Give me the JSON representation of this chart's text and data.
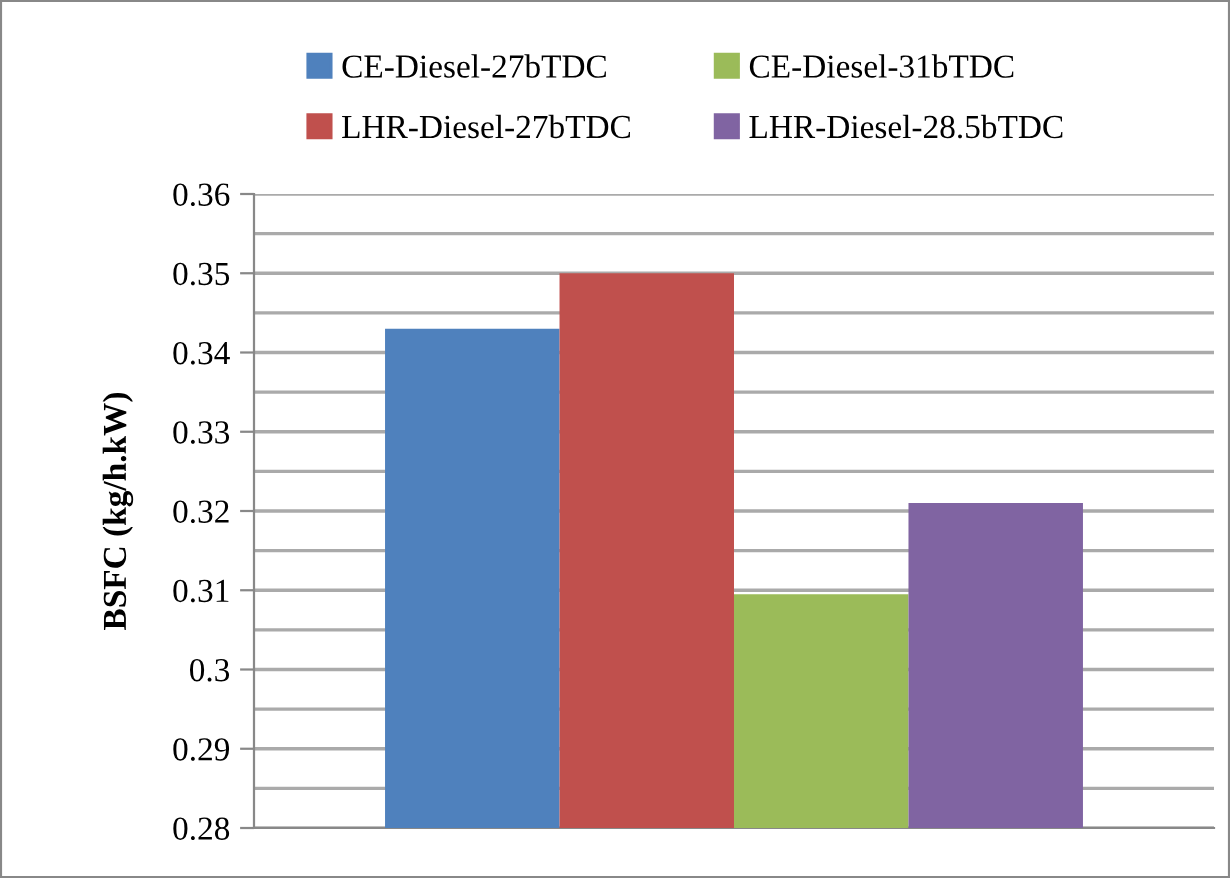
{
  "chart_data": {
    "type": "bar",
    "ylabel": "BSFC (kg/h.kW)",
    "categories": [
      null
    ],
    "series": [
      {
        "name": "CE-Diesel-27bTDC",
        "color": "#4f81bd",
        "values": [
          0.343
        ]
      },
      {
        "name": "LHR-Diesel-27bTDC",
        "color": "#c0504d",
        "values": [
          0.35
        ]
      },
      {
        "name": "CE-Diesel-31bTDC",
        "color": "#9bbb59",
        "values": [
          0.3095
        ]
      },
      {
        "name": "LHR-Diesel-28.5bTDC",
        "color": "#8064a2",
        "values": [
          0.321
        ]
      }
    ],
    "ylim": [
      0.28,
      0.36
    ],
    "yticks": [
      0.28,
      {
        "value": 0.285,
        "label": null
      },
      0.29,
      {
        "value": 0.295,
        "label": null
      },
      0.3,
      {
        "value": 0.305,
        "label": null
      },
      0.31,
      {
        "value": 0.315,
        "label": null
      },
      0.32,
      {
        "value": 0.325,
        "label": null
      },
      0.33,
      {
        "value": 0.335,
        "label": null
      },
      0.34,
      {
        "value": 0.345,
        "label": null
      },
      0.35,
      {
        "value": 0.355,
        "label": null
      },
      0.36
    ],
    "grid": "y",
    "legend": "top"
  }
}
